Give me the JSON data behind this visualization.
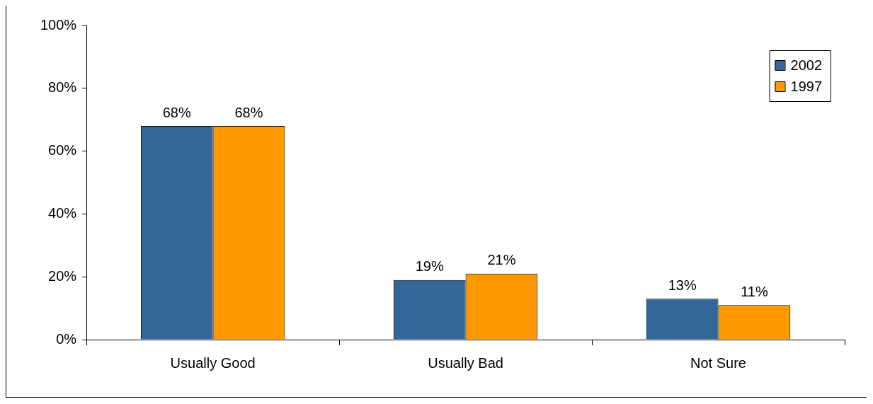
{
  "chart_data": {
    "type": "bar",
    "categories": [
      "Usually Good",
      "Usually Bad",
      "Not Sure"
    ],
    "series": [
      {
        "name": "2002",
        "color": "#336699",
        "values": [
          68,
          19,
          13
        ],
        "value_labels": [
          "68%",
          "19%",
          "13%"
        ]
      },
      {
        "name": "1997",
        "color": "#ff9900",
        "values": [
          68,
          21,
          11
        ],
        "value_labels": [
          "68%",
          "21%",
          "11%"
        ]
      }
    ],
    "ylim": [
      0,
      100
    ],
    "yticks": [
      {
        "value": 0,
        "label": "0%"
      },
      {
        "value": 20,
        "label": "20%"
      },
      {
        "value": 40,
        "label": "40%"
      },
      {
        "value": 60,
        "label": "60%"
      },
      {
        "value": 80,
        "label": "80%"
      },
      {
        "value": 100,
        "label": "100%"
      }
    ],
    "grid": false,
    "legend": "top right"
  }
}
